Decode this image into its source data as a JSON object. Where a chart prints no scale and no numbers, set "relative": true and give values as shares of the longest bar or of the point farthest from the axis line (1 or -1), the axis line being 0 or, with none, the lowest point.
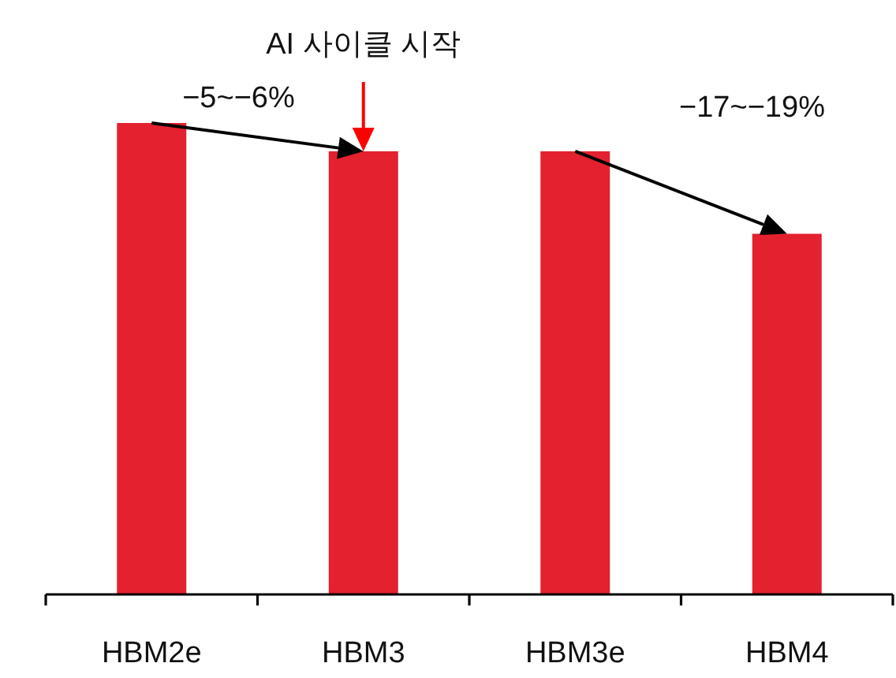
{
  "chart_data": {
    "type": "bar",
    "relative": true,
    "categories": [
      "HBM2e",
      "HBM3",
      "HBM3e",
      "HBM4"
    ],
    "values": [
      1,
      0.94,
      0.94,
      0.765
    ],
    "color": "#e3212f",
    "annotations": [
      {
        "text": "AI 사이클 시작",
        "x": "HBM3",
        "y": 0.94
      },
      "−5~−6%",
      "−17~−19%"
    ]
  }
}
